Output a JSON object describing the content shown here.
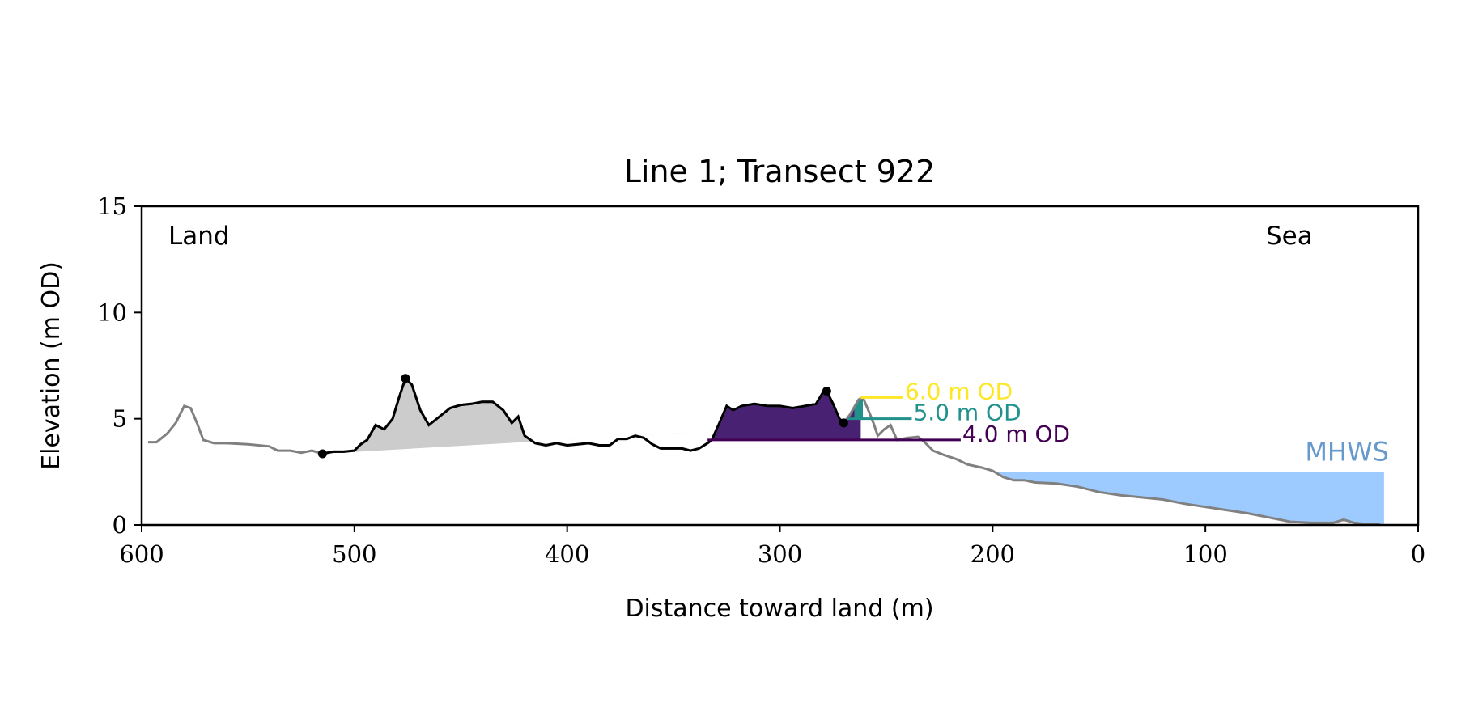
{
  "chart_data": {
    "type": "area",
    "title": "Line 1; Transect 922",
    "xlabel": "Distance toward land (m)",
    "ylabel": "Elevation (m OD)",
    "xlim": [
      600,
      0
    ],
    "ylim": [
      0,
      15
    ],
    "x_ticks": [
      "600",
      "500",
      "400",
      "300",
      "200",
      "100",
      "0"
    ],
    "y_ticks": [
      "0",
      "5",
      "10",
      "15"
    ],
    "x_tick_values": [
      600,
      500,
      400,
      300,
      200,
      100,
      0
    ],
    "y_tick_values": [
      0,
      5,
      10,
      15
    ],
    "grid": false,
    "corner_labels": {
      "land": "Land",
      "sea": "Sea"
    },
    "colors": {
      "profile_full": "#808080",
      "profile_dune": "#000000",
      "dune_fill": "#cccccc",
      "level_4": "#440154",
      "level_4_fill": "#482173",
      "level_5": "#21918c",
      "level_6": "#fde725",
      "mhws_fill": "#9ecbff",
      "mhws_text": "#6699cc"
    },
    "profile": [
      [
        597,
        3.9
      ],
      [
        593,
        3.9
      ],
      [
        588,
        4.3
      ],
      [
        584,
        4.8
      ],
      [
        580,
        5.6
      ],
      [
        577,
        5.5
      ],
      [
        574,
        4.8
      ],
      [
        571,
        4.0
      ],
      [
        566,
        3.85
      ],
      [
        560,
        3.85
      ],
      [
        550,
        3.8
      ],
      [
        540,
        3.7
      ],
      [
        536,
        3.5
      ],
      [
        530,
        3.5
      ],
      [
        525,
        3.4
      ],
      [
        520,
        3.5
      ],
      [
        515,
        3.35
      ],
      [
        510,
        3.45
      ],
      [
        505,
        3.45
      ],
      [
        500,
        3.5
      ],
      [
        497,
        3.8
      ],
      [
        494,
        4.0
      ],
      [
        490,
        4.7
      ],
      [
        486,
        4.5
      ],
      [
        482,
        5.0
      ],
      [
        479,
        6.0
      ],
      [
        476,
        6.9
      ],
      [
        473,
        6.6
      ],
      [
        469,
        5.4
      ],
      [
        465,
        4.7
      ],
      [
        460,
        5.1
      ],
      [
        455,
        5.5
      ],
      [
        450,
        5.65
      ],
      [
        445,
        5.7
      ],
      [
        440,
        5.8
      ],
      [
        435,
        5.8
      ],
      [
        430,
        5.4
      ],
      [
        426,
        4.8
      ],
      [
        423,
        5.1
      ],
      [
        420,
        4.2
      ],
      [
        415,
        3.85
      ],
      [
        410,
        3.75
      ],
      [
        405,
        3.85
      ],
      [
        400,
        3.75
      ],
      [
        395,
        3.8
      ],
      [
        390,
        3.85
      ],
      [
        385,
        3.75
      ],
      [
        380,
        3.75
      ],
      [
        376,
        4.05
      ],
      [
        372,
        4.05
      ],
      [
        368,
        4.2
      ],
      [
        364,
        4.1
      ],
      [
        360,
        3.8
      ],
      [
        356,
        3.6
      ],
      [
        352,
        3.6
      ],
      [
        346,
        3.6
      ],
      [
        342,
        3.5
      ],
      [
        338,
        3.6
      ],
      [
        334,
        3.85
      ],
      [
        332,
        4.0
      ],
      [
        328,
        4.9
      ],
      [
        325,
        5.6
      ],
      [
        322,
        5.4
      ],
      [
        318,
        5.6
      ],
      [
        312,
        5.7
      ],
      [
        306,
        5.6
      ],
      [
        300,
        5.6
      ],
      [
        294,
        5.5
      ],
      [
        288,
        5.6
      ],
      [
        283,
        5.7
      ],
      [
        280,
        6.2
      ],
      [
        278,
        6.3
      ],
      [
        275,
        5.7
      ],
      [
        272,
        5.0
      ],
      [
        270,
        4.8
      ],
      [
        267,
        5.2
      ],
      [
        263,
        5.9
      ],
      [
        261,
        6.0
      ],
      [
        258,
        5.3
      ],
      [
        256,
        4.8
      ],
      [
        254,
        4.2
      ],
      [
        251,
        4.5
      ],
      [
        248,
        4.7
      ],
      [
        245,
        4.0
      ],
      [
        240,
        4.1
      ],
      [
        235,
        4.15
      ],
      [
        232,
        3.9
      ],
      [
        228,
        3.5
      ],
      [
        223,
        3.3
      ],
      [
        217,
        3.1
      ],
      [
        212,
        2.85
      ],
      [
        205,
        2.7
      ],
      [
        200,
        2.55
      ],
      [
        195,
        2.25
      ],
      [
        190,
        2.1
      ],
      [
        185,
        2.1
      ],
      [
        180,
        2.0
      ],
      [
        170,
        1.95
      ],
      [
        160,
        1.8
      ],
      [
        150,
        1.55
      ],
      [
        140,
        1.4
      ],
      [
        130,
        1.3
      ],
      [
        120,
        1.2
      ],
      [
        110,
        1.0
      ],
      [
        100,
        0.85
      ],
      [
        90,
        0.7
      ],
      [
        80,
        0.55
      ],
      [
        70,
        0.35
      ],
      [
        60,
        0.15
      ],
      [
        50,
        0.1
      ],
      [
        40,
        0.1
      ],
      [
        35,
        0.25
      ],
      [
        30,
        0.1
      ],
      [
        25,
        0.05
      ],
      [
        18,
        0.05
      ]
    ],
    "dune_section": {
      "x_start": 515,
      "x_end": 270
    },
    "dune_points": [
      [
        515,
        3.35
      ],
      [
        476,
        6.9
      ],
      [
        278,
        6.3
      ],
      [
        270,
        4.8
      ]
    ],
    "dune_base_line": [
      [
        515,
        3.35
      ],
      [
        334,
        4.4
      ]
    ],
    "level_fill_4": {
      "elevation": 4.0,
      "x_start": 334,
      "x_end": 262
    },
    "level_fill_5": {
      "elevation": 5.0,
      "x_start": 265,
      "x_end": 261
    },
    "levels": [
      {
        "label": "6.0 m OD",
        "elevation": 6.0,
        "x_start": 262,
        "x_end": 242,
        "color": "#fde725"
      },
      {
        "label": "5.0 m OD",
        "elevation": 5.0,
        "x_start": 268,
        "x_end": 238,
        "color": "#21918c"
      },
      {
        "label": "4.0 m OD",
        "elevation": 4.0,
        "x_start": 334,
        "x_end": 215,
        "color": "#440154"
      }
    ],
    "mhws": {
      "label": "MHWS",
      "elevation": 2.5,
      "x_start": 200,
      "x_end": 16
    }
  }
}
